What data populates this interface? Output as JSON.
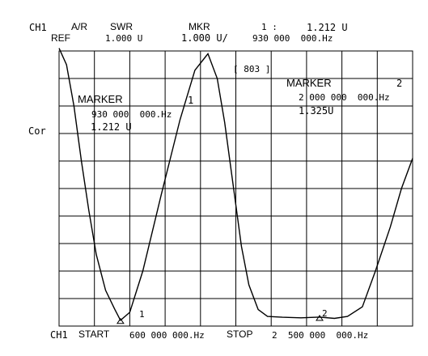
{
  "header": {
    "channel": "CH1",
    "format": "A/R",
    "measurement": "SWR",
    "marker_label": "MKR",
    "marker_index": "1 :",
    "marker_value": "1.212 U",
    "ref_label": "REF",
    "ref_value": "1.000 U",
    "scale": "1.000 U/",
    "marker_freq": "930 000  000.Hz"
  },
  "side_label": "Cor",
  "annotations": {
    "bracket": "[ 803 ]",
    "marker1_title": "MARKER",
    "marker1_num": "1",
    "marker1_freq": "930 000  000.Hz",
    "marker1_value": "1.212 U",
    "marker2_title": "MARKER",
    "marker2_num": "2",
    "marker2_freq": "2 000 000  000.Hz",
    "marker2_value": "1.325U"
  },
  "trace_markers": {
    "m1_label": "1",
    "m2_label": "2"
  },
  "footer": {
    "channel": "CH1",
    "start_label": "START",
    "start_value": "600 000 000.Hz",
    "stop_label": "STOP",
    "stop_value": "2  500 000  000.Hz"
  },
  "chart_data": {
    "type": "line",
    "x_start_hz": 600000000,
    "x_stop_hz": 2500000000,
    "y_ref": 1.0,
    "y_scale_per_div": 1.0,
    "grid": true,
    "series": [
      {
        "x": [
          600000000,
          640000000,
          680000000,
          720000000,
          760000000,
          800000000,
          850000000,
          900000000,
          930000000,
          980000000,
          1050000000,
          1150000000,
          1250000000,
          1330000000,
          1400000000,
          1450000000,
          1490000000,
          1530000000,
          1580000000,
          1620000000,
          1670000000,
          1720000000,
          1800000000,
          1900000000,
          2000000000,
          2080000000,
          2150000000,
          2230000000,
          2300000000,
          2380000000,
          2440000000,
          2500000000
        ],
        "values": [
          11.1,
          10.5,
          9.0,
          7.0,
          5.2,
          3.6,
          2.3,
          1.6,
          1.21,
          1.5,
          3.0,
          5.8,
          8.5,
          10.3,
          10.9,
          10.0,
          8.4,
          6.4,
          3.9,
          2.5,
          1.6,
          1.35,
          1.32,
          1.3,
          1.325,
          1.28,
          1.35,
          1.7,
          3.0,
          4.6,
          6.0,
          7.1
        ]
      }
    ]
  }
}
